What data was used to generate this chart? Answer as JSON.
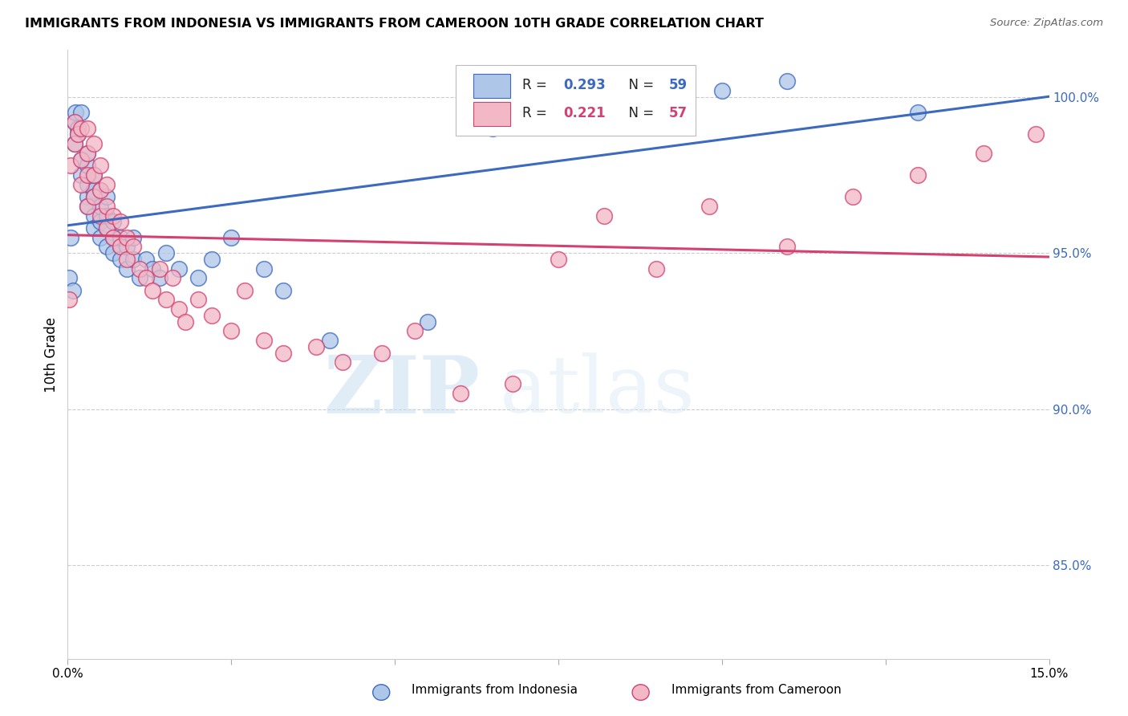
{
  "title": "IMMIGRANTS FROM INDONESIA VS IMMIGRANTS FROM CAMEROON 10TH GRADE CORRELATION CHART",
  "source": "Source: ZipAtlas.com",
  "ylabel": "10th Grade",
  "xmin": 0.0,
  "xmax": 0.15,
  "ymin": 82.0,
  "ymax": 101.5,
  "blue_R": 0.293,
  "blue_N": 59,
  "pink_R": 0.221,
  "pink_N": 57,
  "blue_color": "#aec6e8",
  "pink_color": "#f2b8c6",
  "blue_line_color": "#3b6abf",
  "pink_line_color": "#d44070",
  "watermark_zip": "ZIP",
  "watermark_atlas": "atlas",
  "blue_scatter_x": [
    0.0002,
    0.0005,
    0.0008,
    0.001,
    0.001,
    0.0012,
    0.0015,
    0.0015,
    0.002,
    0.002,
    0.002,
    0.003,
    0.003,
    0.003,
    0.003,
    0.003,
    0.004,
    0.004,
    0.004,
    0.004,
    0.004,
    0.005,
    0.005,
    0.005,
    0.005,
    0.006,
    0.006,
    0.006,
    0.006,
    0.007,
    0.007,
    0.007,
    0.008,
    0.008,
    0.008,
    0.009,
    0.009,
    0.01,
    0.01,
    0.011,
    0.012,
    0.013,
    0.014,
    0.015,
    0.017,
    0.02,
    0.022,
    0.025,
    0.03,
    0.033,
    0.04,
    0.055,
    0.065,
    0.075,
    0.085,
    0.092,
    0.1,
    0.11,
    0.13
  ],
  "blue_scatter_y": [
    94.2,
    95.5,
    93.8,
    99.2,
    98.5,
    99.5,
    99.0,
    98.8,
    97.5,
    98.0,
    99.5,
    96.8,
    97.2,
    96.5,
    97.8,
    98.2,
    96.2,
    97.0,
    96.8,
    95.8,
    97.5,
    96.0,
    95.5,
    96.5,
    97.0,
    95.8,
    96.2,
    95.2,
    96.8,
    95.5,
    96.0,
    95.0,
    95.2,
    94.8,
    95.5,
    94.5,
    95.2,
    94.8,
    95.5,
    94.2,
    94.8,
    94.5,
    94.2,
    95.0,
    94.5,
    94.2,
    94.8,
    95.5,
    94.5,
    93.8,
    92.2,
    92.8,
    99.0,
    100.0,
    100.5,
    99.5,
    100.2,
    100.5,
    99.5
  ],
  "pink_scatter_x": [
    0.0002,
    0.0005,
    0.001,
    0.001,
    0.0015,
    0.002,
    0.002,
    0.002,
    0.003,
    0.003,
    0.003,
    0.003,
    0.004,
    0.004,
    0.004,
    0.005,
    0.005,
    0.005,
    0.006,
    0.006,
    0.006,
    0.007,
    0.007,
    0.008,
    0.008,
    0.009,
    0.009,
    0.01,
    0.011,
    0.012,
    0.013,
    0.014,
    0.015,
    0.016,
    0.017,
    0.018,
    0.02,
    0.022,
    0.025,
    0.027,
    0.03,
    0.033,
    0.038,
    0.042,
    0.048,
    0.053,
    0.06,
    0.068,
    0.075,
    0.082,
    0.09,
    0.098,
    0.11,
    0.12,
    0.13,
    0.14,
    0.148
  ],
  "pink_scatter_y": [
    93.5,
    97.8,
    98.5,
    99.2,
    98.8,
    97.2,
    98.0,
    99.0,
    96.5,
    97.5,
    98.2,
    99.0,
    96.8,
    97.5,
    98.5,
    96.2,
    97.0,
    97.8,
    95.8,
    96.5,
    97.2,
    95.5,
    96.2,
    95.2,
    96.0,
    94.8,
    95.5,
    95.2,
    94.5,
    94.2,
    93.8,
    94.5,
    93.5,
    94.2,
    93.2,
    92.8,
    93.5,
    93.0,
    92.5,
    93.8,
    92.2,
    91.8,
    92.0,
    91.5,
    91.8,
    92.5,
    90.5,
    90.8,
    94.8,
    96.2,
    94.5,
    96.5,
    95.2,
    96.8,
    97.5,
    98.2,
    98.8
  ]
}
